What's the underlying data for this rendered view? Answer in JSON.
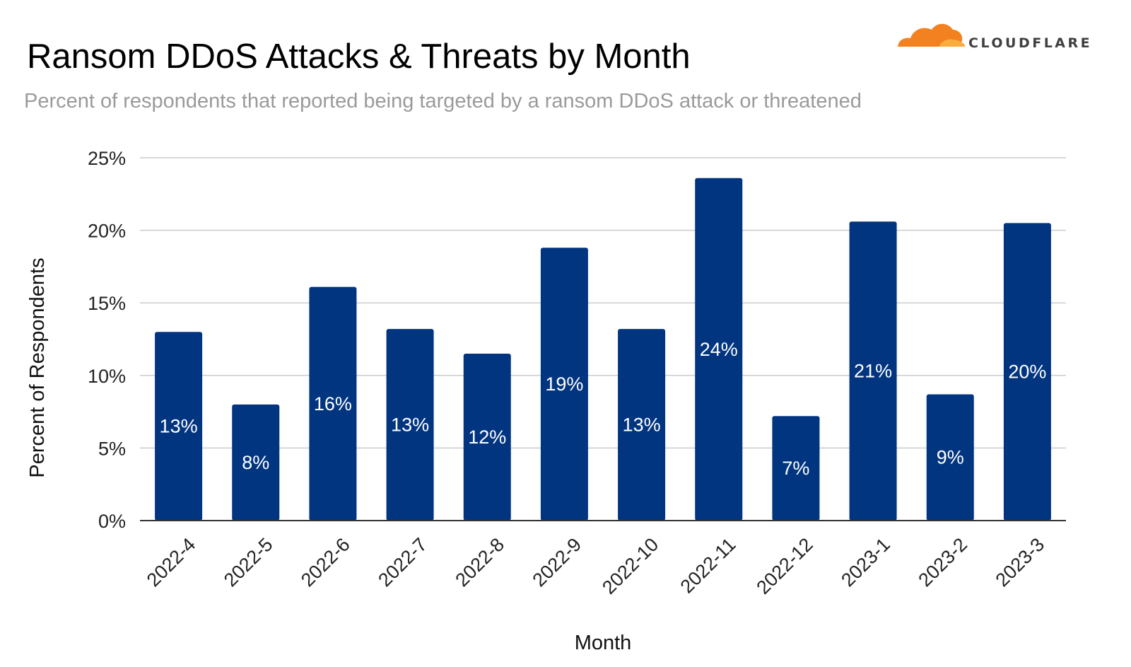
{
  "logo": {
    "text": "CLOUDFLARE",
    "icon": "cloud-icon",
    "colors": {
      "primary": "#f48120",
      "secondary": "#faad3f"
    }
  },
  "chart_data": {
    "type": "bar",
    "title": "Ransom DDoS Attacks & Threats by Month",
    "subtitle": "Percent of respondents that reported being targeted by a ransom DDoS attack or threatened",
    "xlabel": "Month",
    "ylabel": "Percent of Respondents",
    "ylim": [
      0,
      25
    ],
    "yticks": [
      "0%",
      "5%",
      "10%",
      "15%",
      "20%",
      "25%"
    ],
    "grid": true,
    "bar_color": "#023580",
    "categories": [
      "2022-4",
      "2022-5",
      "2022-6",
      "2022-7",
      "2022-8",
      "2022-9",
      "2022-10",
      "2022-11",
      "2022-12",
      "2023-1",
      "2023-2",
      "2023-3"
    ],
    "values": [
      13,
      8,
      16.1,
      13.2,
      11.5,
      18.8,
      13.2,
      23.6,
      7.2,
      20.6,
      8.7,
      20.5
    ],
    "data_labels": [
      "13%",
      "8%",
      "16%",
      "13%",
      "12%",
      "19%",
      "13%",
      "24%",
      "7%",
      "21%",
      "9%",
      "20%"
    ]
  }
}
